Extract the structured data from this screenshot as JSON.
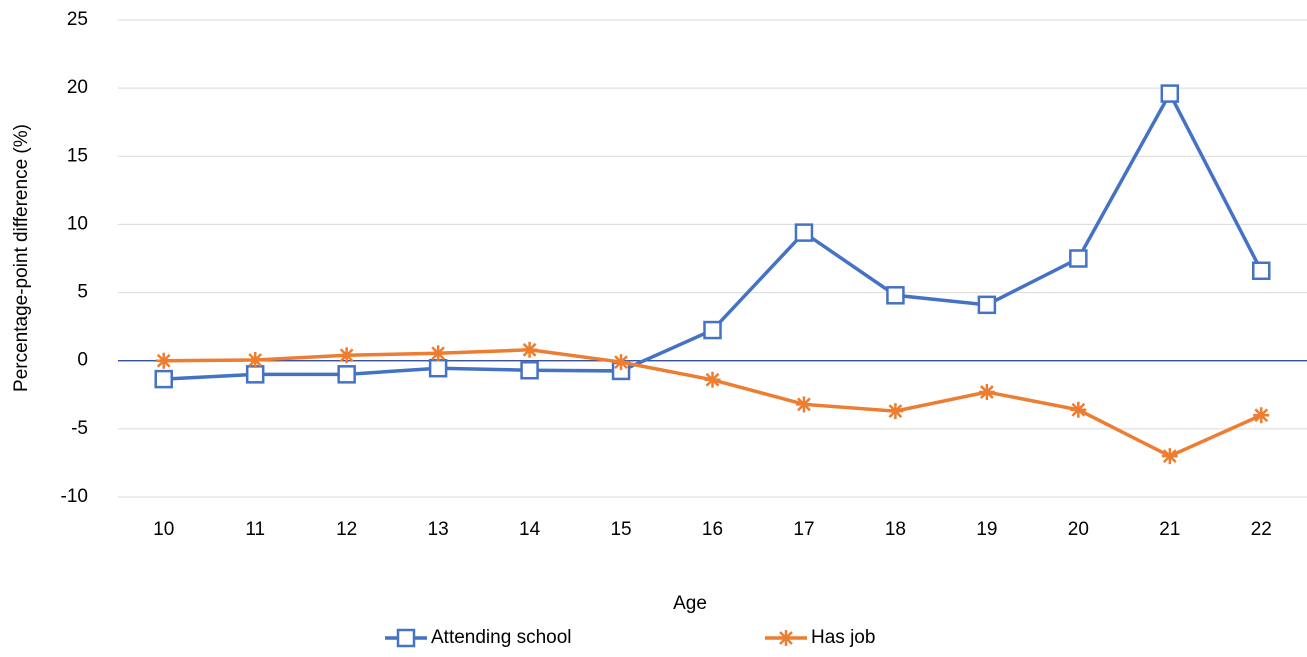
{
  "chart_data": {
    "type": "line",
    "x_label": "Age",
    "y_label": "Percentage-point difference (%)",
    "categories": [
      "10",
      "11",
      "12",
      "13",
      "14",
      "15",
      "16",
      "17",
      "18",
      "19",
      "20",
      "21",
      "22"
    ],
    "series": [
      {
        "name": "Attending school",
        "color": "#4472c4",
        "marker": "square",
        "values": [
          -1.35,
          -1.0,
          -1.0,
          -0.55,
          -0.7,
          -0.75,
          2.25,
          9.4,
          4.8,
          4.1,
          7.5,
          19.6,
          6.6
        ]
      },
      {
        "name": "Has job",
        "color": "#ed7d31",
        "marker": "star",
        "values": [
          0,
          0.05,
          0.4,
          0.55,
          0.8,
          -0.1,
          -1.4,
          -3.2,
          -3.7,
          -2.3,
          -3.6,
          -7.0,
          -4.0
        ]
      }
    ],
    "ylim": [
      -10,
      25
    ],
    "yticks": [
      -10,
      -5,
      0,
      5,
      10,
      15,
      20,
      25
    ],
    "grid": true,
    "legend": "bottom"
  }
}
